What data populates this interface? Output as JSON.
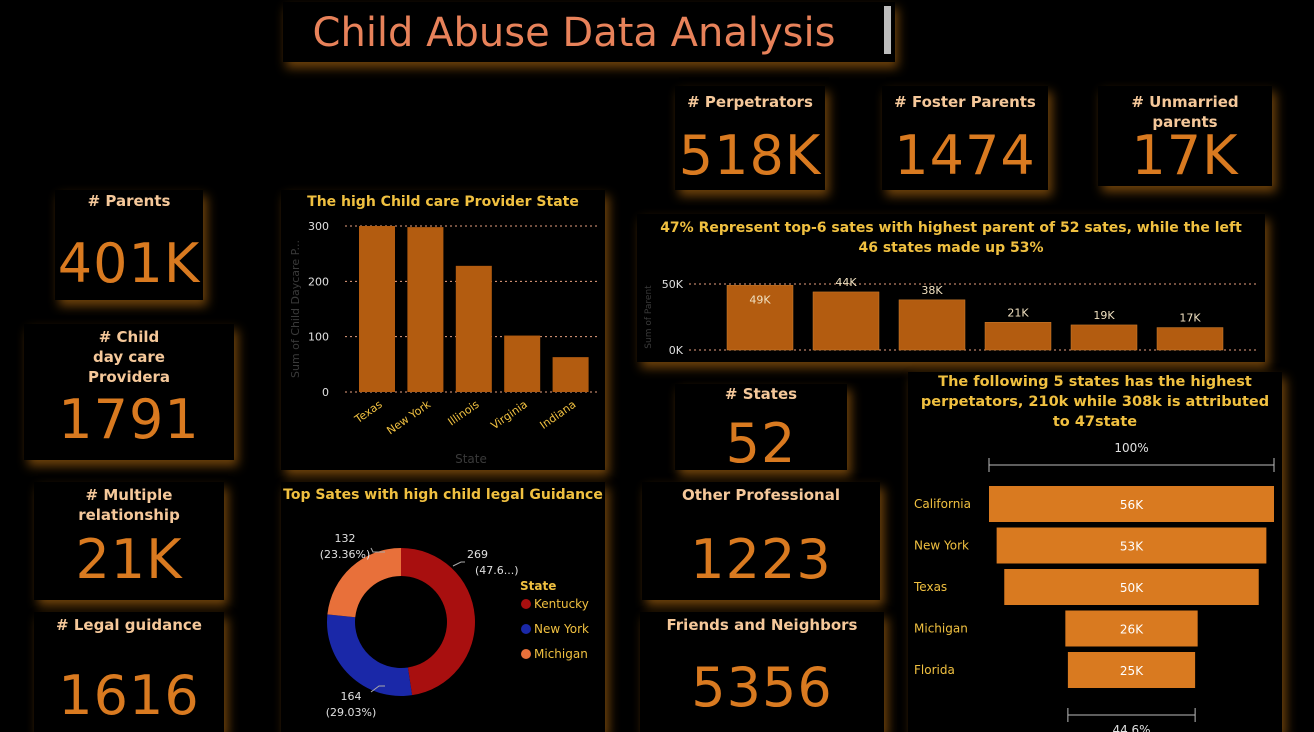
{
  "title": "Child Abuse Data Analysis",
  "kpis": {
    "perpetrators": {
      "label": "# Perpetrators",
      "value": "518K"
    },
    "foster": {
      "label": "# Foster Parents",
      "value": "1474"
    },
    "unmarried": {
      "label": "# Unmarried parents",
      "value": "17K"
    },
    "parents": {
      "label": "# Parents",
      "value": "401K"
    },
    "daycare": {
      "label": "# Child day care Providera",
      "value": "1791"
    },
    "multiple": {
      "label": "# Multiple relationship",
      "value": "21K"
    },
    "legal": {
      "label": "# Legal guidance",
      "value": "1616"
    },
    "states": {
      "label": "# States",
      "value": "52"
    },
    "other": {
      "label": "Other Professional",
      "value": "1223"
    },
    "friends": {
      "label": "Friends and Neighbors",
      "value": "5356"
    }
  },
  "chart_data": [
    {
      "type": "bar",
      "title": "The high Child care Provider State",
      "xlabel": "State",
      "ylabel": "Sum of Child Daycare P...",
      "categories": [
        "Texas",
        "New York",
        "Illinois",
        "Virginia",
        "Indiana"
      ],
      "values": [
        300,
        298,
        228,
        102,
        63
      ],
      "ylim": [
        0,
        300
      ],
      "yticks": [
        "0",
        "100",
        "200",
        "300"
      ],
      "grid": true,
      "colors": {
        "bar": "#b35c10",
        "grid": "#e8a080"
      }
    },
    {
      "type": "bar",
      "title": "47% Represent top-6 sates with highest parent of 52 sates, while the left 46 states made up 53%",
      "ylabel": "Sum of Parent",
      "categories": [
        "",
        "",
        "",
        "",
        "",
        ""
      ],
      "values": [
        49000,
        44000,
        38000,
        21000,
        19000,
        17000
      ],
      "data_labels": [
        "49K",
        "44K",
        "38K",
        "21K",
        "19K",
        "17K"
      ],
      "ylim": [
        0,
        50000
      ],
      "yticks": [
        "0K",
        "50K"
      ],
      "colors": {
        "bar": "#b35c10"
      }
    },
    {
      "type": "pie",
      "title": "Top Sates with high child legal Guidance",
      "legend_title": "State",
      "legend_position": "right",
      "slices": [
        {
          "name": "Kentucky",
          "value": 269,
          "label": "269",
          "pct": "(47.6...)",
          "color": "#a80f0f"
        },
        {
          "name": "New York",
          "value": 164,
          "label": "164",
          "pct": "(29.03%)",
          "color": "#1a28a8"
        },
        {
          "name": "Michigan",
          "value": 132,
          "label": "132",
          "pct": "(23.36%)",
          "color": "#e8703a"
        }
      ]
    },
    {
      "type": "bar",
      "subtype": "funnel",
      "title": "The following 5 states has the highest perpetators, 210k while 308k is attributed to 47state",
      "top_label": "100%",
      "bottom_label": "44.6%",
      "categories": [
        "California",
        "New York",
        "Texas",
        "Michigan",
        "Florida"
      ],
      "values": [
        56000,
        53000,
        50000,
        26000,
        25000
      ],
      "data_labels": [
        "56K",
        "53K",
        "50K",
        "26K",
        "25K"
      ],
      "colors": {
        "bar": "#d97a20"
      }
    }
  ]
}
